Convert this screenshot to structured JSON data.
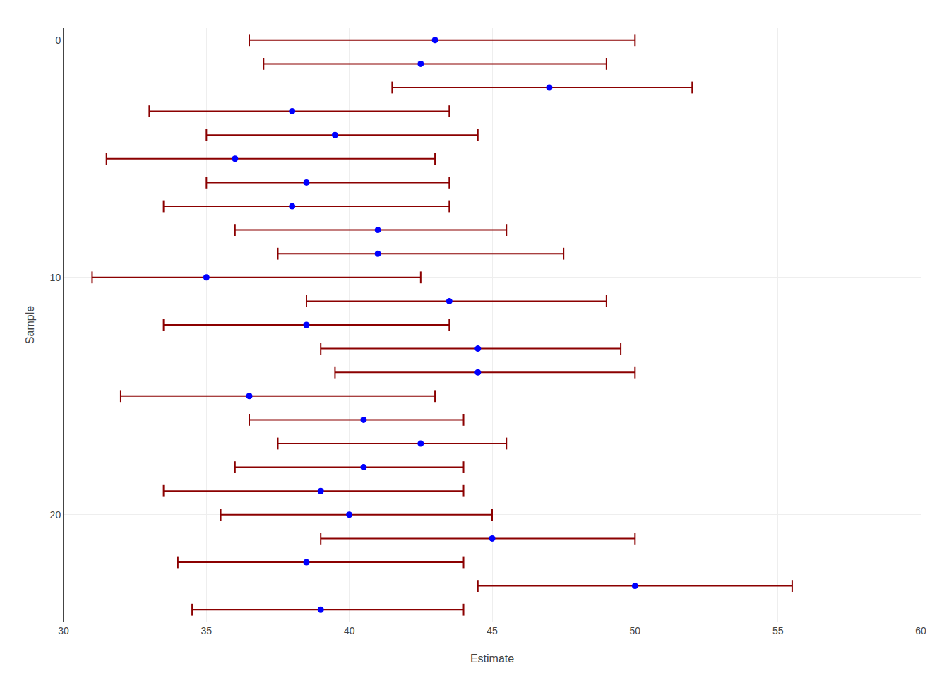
{
  "chart_data": {
    "type": "scatter",
    "xlabel": "Estimate",
    "ylabel": "Sample",
    "y": [
      0,
      1,
      2,
      3,
      4,
      5,
      6,
      7,
      8,
      9,
      10,
      11,
      12,
      13,
      14,
      15,
      16,
      17,
      18,
      19,
      20,
      21,
      22,
      23,
      24
    ],
    "x": [
      43.0,
      42.5,
      47.0,
      38.0,
      39.5,
      36.0,
      38.5,
      38.0,
      41.0,
      41.0,
      35.0,
      43.5,
      38.5,
      44.5,
      44.5,
      36.5,
      40.5,
      42.5,
      40.5,
      39.0,
      40.0,
      45.0,
      38.5,
      50.0,
      39.0
    ],
    "color": "#0000ff",
    "intervals": {
      "lo": [
        36.5,
        37.0,
        41.5,
        33.0,
        35.0,
        31.5,
        35.0,
        33.5,
        36.0,
        37.5,
        31.0,
        38.5,
        33.5,
        39.0,
        39.5,
        32.0,
        36.5,
        37.5,
        36.0,
        33.5,
        35.5,
        39.0,
        34.0,
        44.5,
        34.5
      ],
      "hi": [
        50.0,
        49.0,
        52.0,
        43.5,
        44.5,
        43.0,
        43.5,
        43.5,
        45.5,
        47.5,
        42.5,
        49.0,
        43.5,
        49.5,
        50.0,
        43.0,
        44.0,
        45.5,
        44.0,
        44.0,
        45.0,
        50.0,
        44.0,
        55.5,
        44.0
      ],
      "color": "#8b0000"
    },
    "xlim": [
      30,
      60
    ],
    "xticks": [
      30,
      35,
      40,
      45,
      50,
      55,
      60
    ],
    "ylim": [
      24.5,
      -0.5
    ],
    "yticks": [
      0,
      10,
      20
    ],
    "grid": true
  }
}
